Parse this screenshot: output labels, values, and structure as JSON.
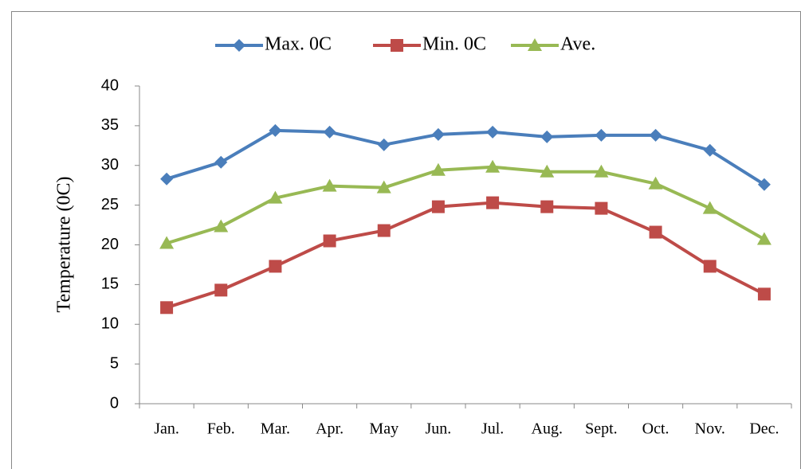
{
  "chart_data": {
    "type": "line",
    "y_label": "Temperature (0C)",
    "categories": [
      "Jan.",
      "Feb.",
      "Mar.",
      "Apr.",
      "May",
      "Jun.",
      "Jul.",
      "Aug.",
      "Sept.",
      "Oct.",
      "Nov.",
      "Dec."
    ],
    "series": [
      {
        "name": "Max. 0C",
        "color": "#4a7ebb",
        "marker": "diamond",
        "values": [
          28.3,
          30.4,
          34.4,
          34.2,
          32.6,
          33.9,
          34.2,
          33.6,
          33.8,
          33.8,
          31.9,
          27.6
        ]
      },
      {
        "name": "Min. 0C",
        "color": "#be4b48",
        "marker": "square",
        "values": [
          12.1,
          14.3,
          17.3,
          20.5,
          21.8,
          24.8,
          25.3,
          24.8,
          24.6,
          21.6,
          17.3,
          13.8
        ]
      },
      {
        "name": "Ave.",
        "color": "#98b954",
        "marker": "triangle",
        "values": [
          20.2,
          22.3,
          25.9,
          27.4,
          27.2,
          29.4,
          29.8,
          29.2,
          29.2,
          27.7,
          24.6,
          20.7
        ]
      }
    ],
    "ylim": [
      0,
      40
    ],
    "yticks": [
      0,
      5,
      10,
      15,
      20,
      25,
      30,
      35,
      40
    ],
    "grid": false,
    "legend": "top"
  }
}
